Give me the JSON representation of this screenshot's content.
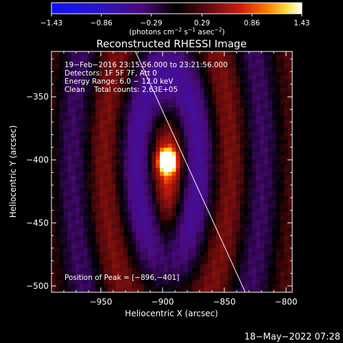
{
  "chart_data": {
    "type": "heatmap",
    "title": "Reconstructed RHESSI Image",
    "xlabel": "Heliocentric X (arcsec)",
    "ylabel": "Heliocentric Y (arcsec)",
    "xlim": [
      -990,
      -795
    ],
    "ylim": [
      -505,
      -314
    ],
    "xticks": [
      -950,
      -900,
      -850,
      -800
    ],
    "xtick_labels": [
      "−950",
      "−900",
      "−850",
      "−800"
    ],
    "yticks": [
      -500,
      -450,
      -400,
      -350
    ],
    "ytick_labels": [
      "−500",
      "−450",
      "−400",
      "−350"
    ],
    "colorbar": {
      "min": -1.43,
      "max": 1.43,
      "ticks": [
        -1.43,
        -0.86,
        -0.29,
        0.29,
        0.86,
        1.43
      ],
      "tick_labels": [
        "−1.43",
        "−0.86",
        "−0.29",
        "0.29",
        "0.86",
        "1.43"
      ],
      "unit_parts": [
        "(photons cm",
        "−2",
        " s",
        "−1",
        " asec",
        "−2",
        ")"
      ]
    },
    "peak_position": [
      -896,
      -401
    ],
    "limb_line": [
      [
        -922,
        -314
      ],
      [
        -833,
        -505
      ]
    ],
    "info_lines": [
      "19−Feb−2016 23:15:56.000 to 23:21:56.000",
      "Detectors: 1F 5F 7F, Att 0",
      "Energy Range: 6.0 − 12.0 keV",
      "Clean    Total counts: 2.63E+05"
    ],
    "peak_text": "Position of Peak = [−896,−401]",
    "colors": {
      "background": "#000000",
      "text": "#ffffff",
      "min": "#1010ff",
      "mid": "#000000",
      "max": "#ffffff"
    }
  },
  "footer": {
    "timestamp": "18−May−2022 07:28"
  }
}
